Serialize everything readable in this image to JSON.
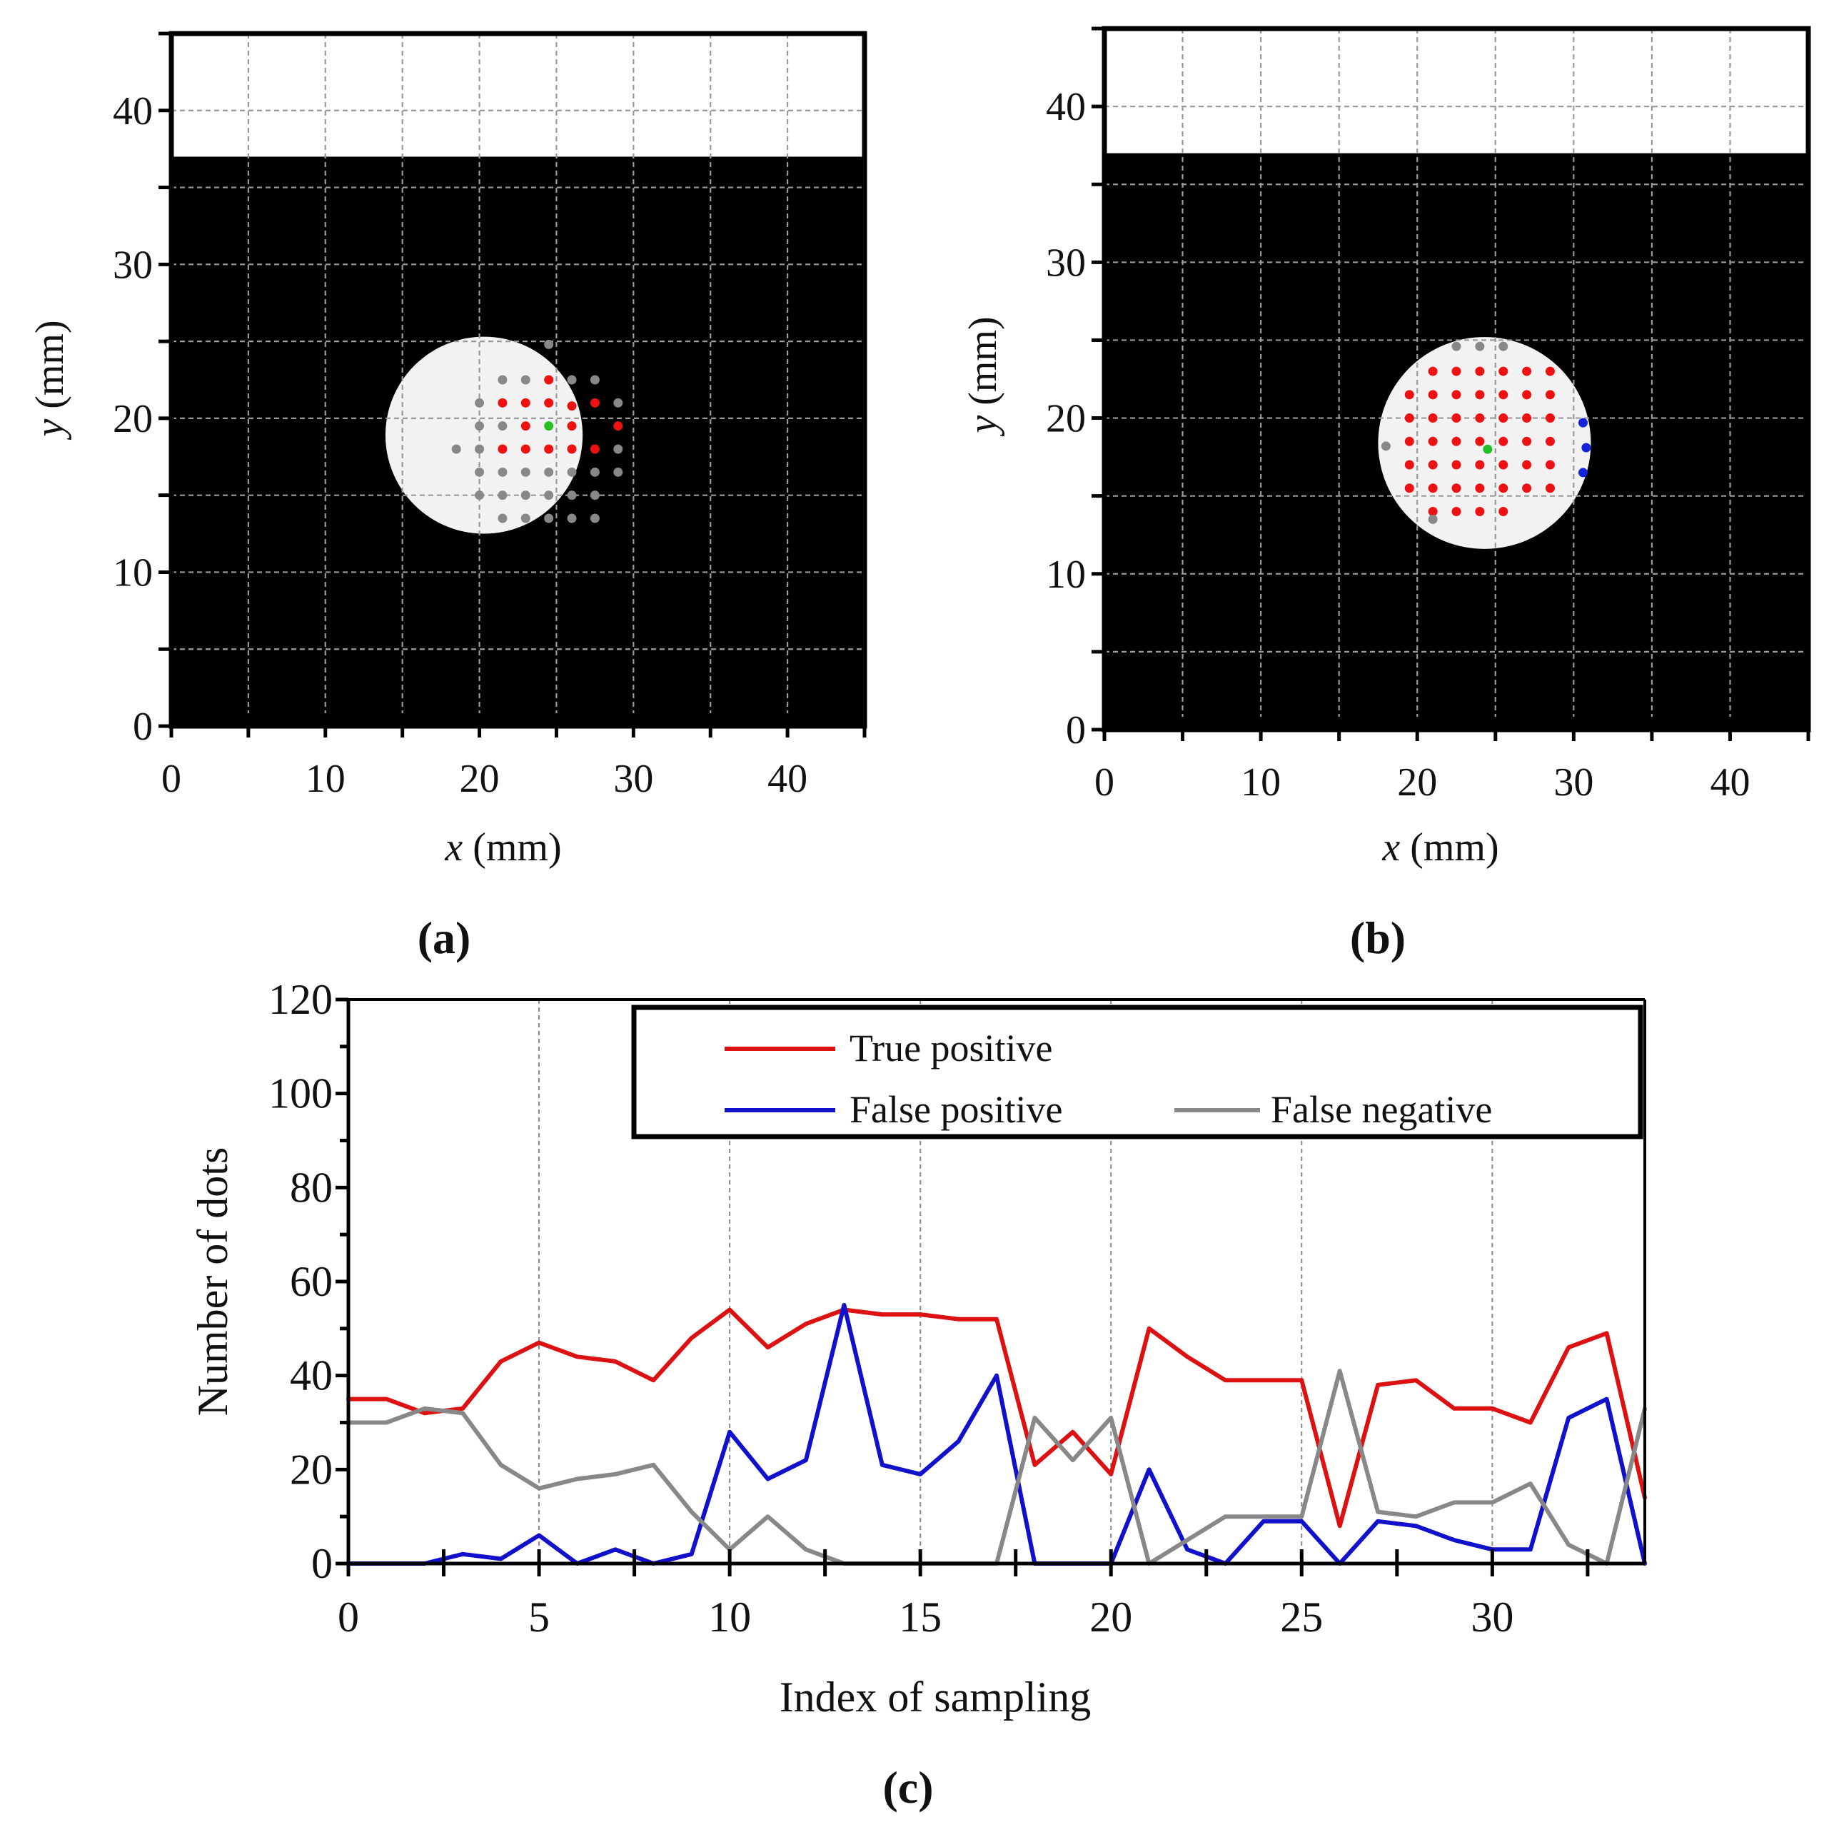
{
  "chart_data": [
    {
      "panel": "a",
      "type": "scatter",
      "caption": "(a)",
      "xlabel_var": "x",
      "xlabel_unit": " (mm)",
      "ylabel_var": "y",
      "ylabel_unit": " (mm)",
      "xlim": [
        0,
        45
      ],
      "ylim": [
        0,
        45
      ],
      "xticks": [
        0,
        10,
        20,
        30,
        40
      ],
      "yticks": [
        0,
        10,
        20,
        30,
        40
      ],
      "background": {
        "dark_below_y": 37,
        "dark_color": "#000000",
        "light_color": "#ffffff"
      },
      "target_disk": {
        "cx": 20.3,
        "cy": 18.9,
        "r": 6.4,
        "color": "#f2f2f2"
      },
      "center_point": {
        "x": 24.5,
        "y": 19.5,
        "color": "#22c022"
      },
      "series": [
        {
          "name": "True positive",
          "color": "#ee1111",
          "points": [
            [
              24.5,
              22.5
            ],
            [
              21.5,
              21
            ],
            [
              23,
              21
            ],
            [
              24.5,
              21
            ],
            [
              26,
              20.8
            ],
            [
              27.5,
              21
            ],
            [
              23,
              19.5
            ],
            [
              26,
              19.5
            ],
            [
              29,
              19.5
            ],
            [
              21.5,
              18
            ],
            [
              23,
              18
            ],
            [
              24.5,
              18
            ],
            [
              26,
              18
            ],
            [
              27.5,
              18
            ]
          ]
        },
        {
          "name": "False positive",
          "color": "#1122dd",
          "points": []
        },
        {
          "name": "False negative",
          "color": "#888888",
          "points": [
            [
              24.5,
              24.8
            ],
            [
              23,
              22.5
            ],
            [
              26,
              22.5
            ],
            [
              27.5,
              22.5
            ],
            [
              21.5,
              22.5
            ],
            [
              20,
              21
            ],
            [
              29,
              21
            ],
            [
              20,
              19.5
            ],
            [
              21.5,
              19.5
            ],
            [
              18.5,
              18
            ],
            [
              20,
              18
            ],
            [
              29,
              18
            ],
            [
              20,
              16.5
            ],
            [
              21.5,
              16.5
            ],
            [
              23,
              16.5
            ],
            [
              24.5,
              16.5
            ],
            [
              26,
              16.5
            ],
            [
              27.5,
              16.5
            ],
            [
              29,
              16.5
            ],
            [
              20,
              15
            ],
            [
              21.5,
              15
            ],
            [
              23,
              15
            ],
            [
              24.5,
              15
            ],
            [
              26,
              15
            ],
            [
              27.5,
              15
            ],
            [
              21.5,
              13.5
            ],
            [
              23,
              13.5
            ],
            [
              24.5,
              13.5
            ],
            [
              26,
              13.5
            ],
            [
              27.5,
              13.5
            ]
          ]
        }
      ]
    },
    {
      "panel": "b",
      "type": "scatter",
      "caption": "(b)",
      "xlabel_var": "x",
      "xlabel_unit": " (mm)",
      "ylabel_var": "y",
      "ylabel_unit": " (mm)",
      "xlim": [
        0,
        45
      ],
      "ylim": [
        0,
        45
      ],
      "xticks": [
        0,
        10,
        20,
        30,
        40
      ],
      "yticks": [
        0,
        10,
        20,
        30,
        40
      ],
      "background": {
        "dark_below_y": 37,
        "dark_color": "#000000",
        "light_color": "#ffffff"
      },
      "target_disk": {
        "cx": 24.3,
        "cy": 18.4,
        "r": 6.8,
        "color": "#f2f2f2"
      },
      "center_point": {
        "x": 24.5,
        "y": 18,
        "color": "#22c022"
      },
      "series": [
        {
          "name": "True positive",
          "color": "#ee1111",
          "points": [
            [
              21,
              23
            ],
            [
              22.5,
              23
            ],
            [
              24,
              23
            ],
            [
              25.5,
              23
            ],
            [
              27,
              23
            ],
            [
              28.5,
              23
            ],
            [
              19.5,
              21.5
            ],
            [
              21,
              21.5
            ],
            [
              22.5,
              21.5
            ],
            [
              24,
              21.5
            ],
            [
              25.5,
              21.5
            ],
            [
              27,
              21.5
            ],
            [
              28.5,
              21.5
            ],
            [
              19.5,
              20
            ],
            [
              21,
              20
            ],
            [
              22.5,
              20
            ],
            [
              24,
              20
            ],
            [
              25.5,
              20
            ],
            [
              27,
              20
            ],
            [
              28.5,
              20
            ],
            [
              19.5,
              18.5
            ],
            [
              21,
              18.5
            ],
            [
              22.5,
              18.5
            ],
            [
              24,
              18.5
            ],
            [
              25.5,
              18.5
            ],
            [
              27,
              18.5
            ],
            [
              28.5,
              18.5
            ],
            [
              19.5,
              17
            ],
            [
              21,
              17
            ],
            [
              22.5,
              17
            ],
            [
              24,
              17
            ],
            [
              25.5,
              17
            ],
            [
              27,
              17
            ],
            [
              28.5,
              17
            ],
            [
              19.5,
              15.5
            ],
            [
              21,
              15.5
            ],
            [
              22.5,
              15.5
            ],
            [
              24,
              15.5
            ],
            [
              25.5,
              15.5
            ],
            [
              27,
              15.5
            ],
            [
              28.5,
              15.5
            ],
            [
              21,
              14
            ],
            [
              22.5,
              14
            ],
            [
              24,
              14
            ],
            [
              25.5,
              14
            ]
          ]
        },
        {
          "name": "False positive",
          "color": "#1122dd",
          "points": [
            [
              30.6,
              19.7
            ],
            [
              30.8,
              18.1
            ],
            [
              30.6,
              16.5
            ]
          ]
        },
        {
          "name": "False negative",
          "color": "#888888",
          "points": [
            [
              22.5,
              24.6
            ],
            [
              24,
              24.6
            ],
            [
              25.5,
              24.6
            ],
            [
              18,
              18.2
            ],
            [
              21,
              13.5
            ]
          ]
        }
      ]
    },
    {
      "panel": "c",
      "type": "line",
      "caption": "(c)",
      "title": "",
      "xlabel": "Index of sampling",
      "ylabel": "Number of dots",
      "xlim": [
        0,
        34
      ],
      "ylim": [
        0,
        120
      ],
      "xticks": [
        0,
        5,
        10,
        15,
        20,
        25,
        30
      ],
      "yticks": [
        0,
        20,
        40,
        60,
        80,
        100,
        120
      ],
      "legend_position": "top-right",
      "x": [
        0,
        1,
        2,
        3,
        4,
        5,
        6,
        7,
        8,
        9,
        10,
        11,
        12,
        13,
        14,
        15,
        16,
        17,
        18,
        19,
        20,
        21,
        22,
        23,
        24,
        25,
        26,
        27,
        28,
        29,
        30,
        31,
        32,
        33,
        34
      ],
      "series": [
        {
          "name": "True positive",
          "color": "#dd1111",
          "values": [
            35,
            35,
            32,
            33,
            43,
            47,
            44,
            43,
            39,
            48,
            54,
            46,
            51,
            54,
            53,
            53,
            52,
            52,
            21,
            28,
            19,
            50,
            44,
            39,
            39,
            39,
            8,
            38,
            39,
            33,
            33,
            30,
            46,
            49,
            14
          ]
        },
        {
          "name": "False positive",
          "color": "#1111cc",
          "values": [
            0,
            0,
            0,
            2,
            1,
            6,
            0,
            3,
            0,
            2,
            28,
            18,
            22,
            55,
            21,
            19,
            26,
            40,
            0,
            0,
            0,
            20,
            3,
            0,
            9,
            9,
            0,
            9,
            8,
            5,
            3,
            3,
            31,
            35,
            0
          ]
        },
        {
          "name": "False negative",
          "color": "#888888",
          "values": [
            30,
            30,
            33,
            32,
            21,
            16,
            18,
            19,
            21,
            11,
            3,
            10,
            3,
            0,
            0,
            0,
            0,
            0,
            31,
            22,
            31,
            0,
            5,
            10,
            10,
            10,
            41,
            11,
            10,
            13,
            13,
            17,
            4,
            0,
            33
          ]
        }
      ]
    }
  ]
}
